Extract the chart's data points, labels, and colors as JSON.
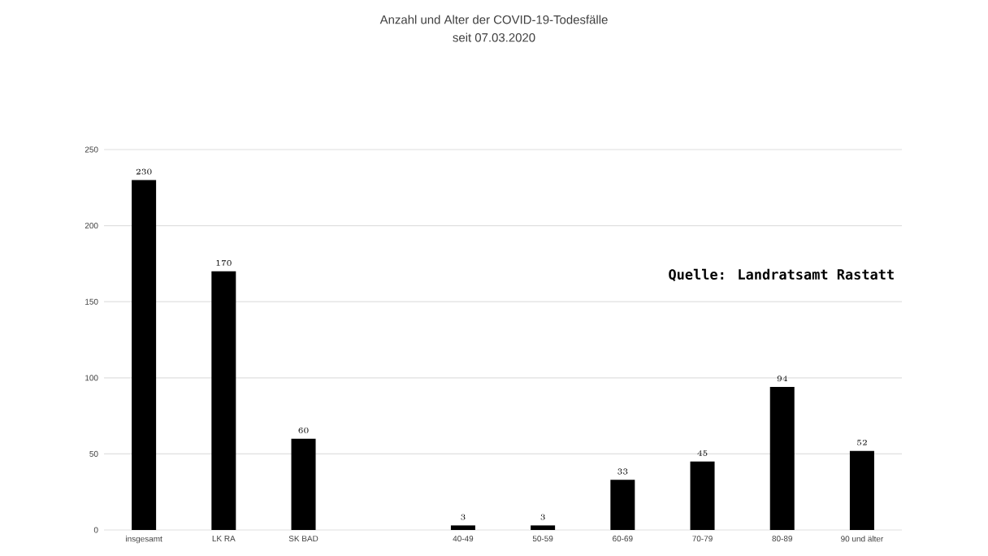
{
  "chart_data": {
    "type": "bar",
    "title": "Anzahl und Alter der COVID-19-Todesfälle",
    "subtitle": "seit 07.03.2020",
    "categories": [
      "insgesamt",
      "LK RA",
      "SK BAD",
      null,
      "40-49",
      "50-59",
      "60-69",
      "70-79",
      "80-89",
      "90 und älter"
    ],
    "values": [
      230,
      170,
      60,
      null,
      3,
      3,
      33,
      45,
      94,
      52
    ],
    "color": "#000000",
    "ylim": [
      0,
      250
    ],
    "yticks": [
      0,
      50,
      100,
      150,
      200,
      250
    ],
    "grid": "y",
    "data_labels": true,
    "annotations": [
      "Quelle: Landratsamt Rastatt"
    ]
  }
}
